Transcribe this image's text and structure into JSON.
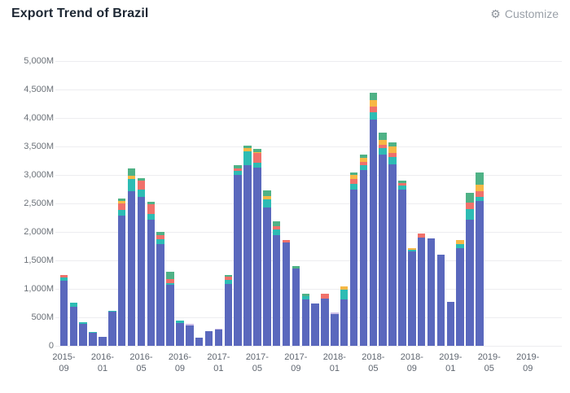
{
  "header": {
    "title": "Export Trend of Brazil",
    "customize_label": "Customize",
    "customize_icon": "⚙"
  },
  "colors": {
    "title_text": "#1d2733",
    "axis_text": "#6b7178",
    "gridline": "#ededf0",
    "customize_text": "#9aa0a8"
  },
  "chart_data": {
    "type": "bar",
    "stacked": true,
    "grid": true,
    "legend": "none",
    "unit": "M",
    "title": "Export Trend of Brazil",
    "ylim": [
      0,
      5000
    ],
    "ytick_step": 500,
    "ytick_labels": [
      "5,000M",
      "4,500M",
      "4,000M",
      "3,500M",
      "3,000M",
      "2,500M",
      "2,000M",
      "1,500M",
      "1,000M",
      "500M",
      "0"
    ],
    "xtick_labels": [
      "2015-09",
      "2016-01",
      "2016-05",
      "2016-09",
      "2017-01",
      "2017-05",
      "2017-09",
      "2018-01",
      "2018-05",
      "2018-09",
      "2019-01",
      "2019-05",
      "2019-09"
    ],
    "xtick_month_indices": [
      0,
      4,
      8,
      12,
      16,
      20,
      24,
      28,
      32,
      36,
      40,
      44,
      48
    ],
    "categories": [
      "2015-09",
      "2015-10",
      "2015-11",
      "2015-12",
      "2016-01",
      "2016-02",
      "2016-03",
      "2016-04",
      "2016-05",
      "2016-06",
      "2016-07",
      "2016-08",
      "2016-09",
      "2016-10",
      "2016-11",
      "2016-12",
      "2017-01",
      "2017-02",
      "2017-03",
      "2017-04",
      "2017-05",
      "2017-06",
      "2017-07",
      "2017-08",
      "2017-09",
      "2017-10",
      "2017-11",
      "2017-12",
      "2018-01",
      "2018-02",
      "2018-03",
      "2018-04",
      "2018-05",
      "2018-06",
      "2018-07",
      "2018-08",
      "2018-09",
      "2018-10",
      "2018-11",
      "2018-12",
      "2019-01",
      "2019-02",
      "2019-03",
      "2019-04"
    ],
    "series": [
      {
        "name": "indigo",
        "color": "#5a68bd",
        "values": [
          1140,
          690,
          380,
          225,
          155,
          600,
          2280,
          2720,
          2620,
          2215,
          1790,
          1070,
          395,
          360,
          140,
          260,
          280,
          1080,
          3000,
          3175,
          3135,
          2430,
          1940,
          1820,
          1350,
          815,
          740,
          835,
          560,
          815,
          2740,
          3080,
          3970,
          3355,
          3190,
          2740,
          1660,
          1905,
          1890,
          1605,
          770,
          1715,
          2215,
          2540
        ]
      },
      {
        "name": "teal",
        "color": "#2dbcb4",
        "values": [
          55,
          70,
          40,
          20,
          0,
          20,
          110,
          205,
          130,
          95,
          85,
          25,
          45,
          0,
          0,
          0,
          0,
          75,
          70,
          240,
          80,
          140,
          105,
          0,
          0,
          60,
          0,
          0,
          0,
          165,
          110,
          95,
          130,
          120,
          120,
          70,
          25,
          0,
          0,
          0,
          0,
          70,
          190,
          80
        ]
      },
      {
        "name": "red",
        "color": "#f0716b",
        "values": [
          45,
          0,
          0,
          0,
          0,
          0,
          110,
          0,
          145,
          175,
          70,
          70,
          0,
          0,
          0,
          0,
          0,
          55,
          50,
          0,
          165,
          0,
          50,
          40,
          0,
          0,
          0,
          85,
          0,
          0,
          75,
          60,
          95,
          50,
          70,
          50,
          0,
          60,
          0,
          0,
          0,
          0,
          105,
          95
        ]
      },
      {
        "name": "amber",
        "color": "#f7b845",
        "values": [
          0,
          0,
          0,
          0,
          0,
          0,
          50,
          60,
          0,
          0,
          0,
          0,
          0,
          0,
          0,
          0,
          0,
          0,
          0,
          50,
          25,
          60,
          0,
          0,
          0,
          0,
          0,
          0,
          0,
          60,
          70,
          60,
          115,
          95,
          120,
          0,
          30,
          0,
          0,
          0,
          0,
          70,
          0,
          120
        ]
      },
      {
        "name": "green",
        "color": "#4fb286",
        "values": [
          0,
          0,
          0,
          0,
          0,
          0,
          30,
          135,
          50,
          50,
          50,
          140,
          0,
          0,
          0,
          0,
          0,
          40,
          55,
          50,
          50,
          105,
          95,
          0,
          45,
          45,
          0,
          0,
          0,
          0,
          55,
          60,
          140,
          120,
          70,
          45,
          0,
          0,
          0,
          0,
          0,
          0,
          180,
          215
        ]
      },
      {
        "name": "lavender",
        "color": "#cdbfe8",
        "values": [
          0,
          0,
          0,
          0,
          0,
          0,
          0,
          0,
          0,
          0,
          0,
          0,
          0,
          30,
          0,
          0,
          20,
          0,
          0,
          0,
          0,
          0,
          0,
          0,
          0,
          0,
          0,
          0,
          30,
          0,
          0,
          0,
          0,
          0,
          0,
          0,
          0,
          0,
          0,
          0,
          0,
          0,
          0,
          0
        ]
      }
    ]
  }
}
